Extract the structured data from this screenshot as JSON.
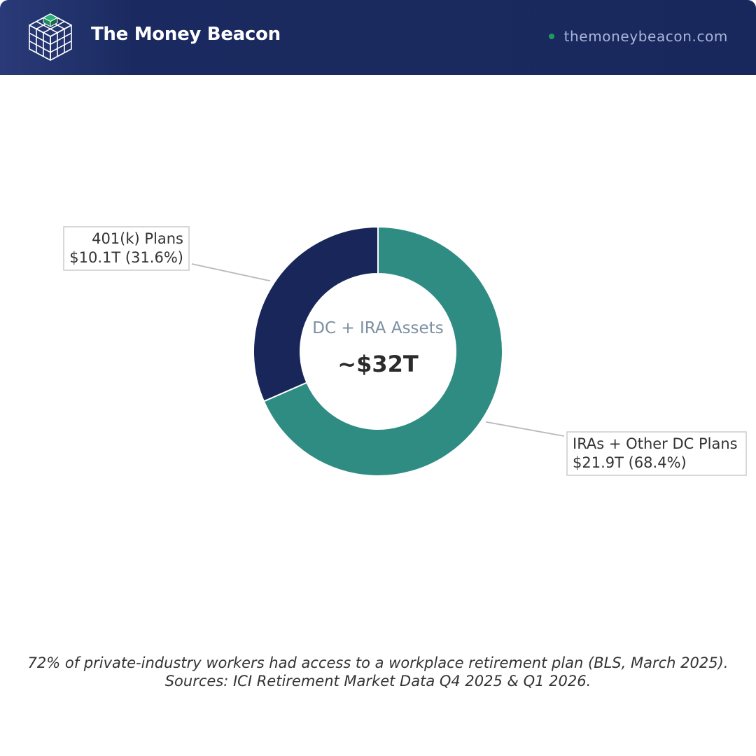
{
  "header": {
    "brand": "The Money Beacon",
    "url": "themoneybeacon.com",
    "bg_color": "#19285c",
    "dot_color": "#1f9a5c",
    "logo_icon": "cube-grid-icon"
  },
  "chart_data": {
    "type": "pie",
    "center_title": "DC + IRA Assets",
    "center_value": "~$32T",
    "series": [
      {
        "name": "401(k) Plans",
        "value": 10.1,
        "value_label": "$10.1T",
        "pct_label": "(31.6%)",
        "color": "#19265a"
      },
      {
        "name": "IRAs + Other DC Plans",
        "value": 21.9,
        "value_label": "$21.9T",
        "pct_label": "(68.4%)",
        "color": "#2f8c83"
      }
    ]
  },
  "footer": {
    "line1": "72% of private-industry workers had access to a workplace retirement plan (BLS, March 2025).",
    "line2": "Sources: ICI Retirement Market Data Q4 2025 & Q1 2026."
  }
}
